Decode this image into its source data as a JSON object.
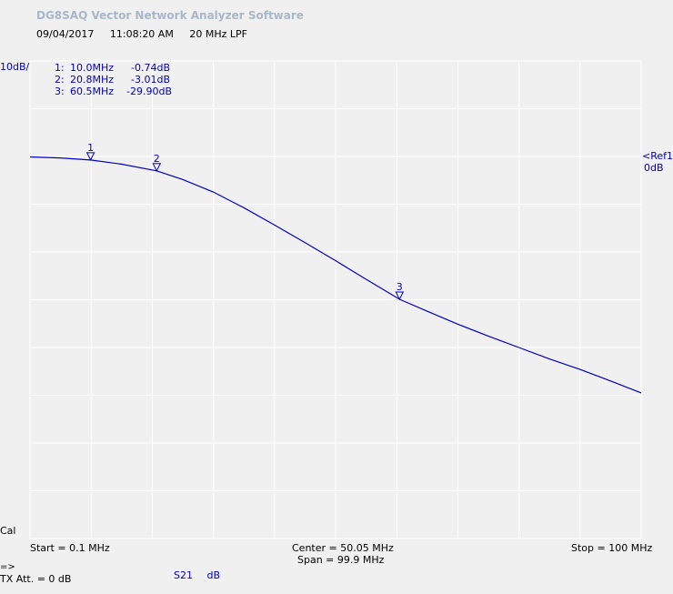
{
  "app_title": "DG8SAQ Vector Network Analyzer Software",
  "meta": {
    "date": "09/04/2017",
    "time": "11:08:20 AM",
    "label": "20 MHz LPF"
  },
  "scale_label": "10dB/",
  "markers": [
    {
      "idx": "1:",
      "freq": "10.0MHz",
      "val": "-0.74dB"
    },
    {
      "idx": "2:",
      "freq": "20.8MHz",
      "val": "-3.01dB"
    },
    {
      "idx": "3:",
      "freq": "60.5MHz",
      "val": "-29.90dB"
    }
  ],
  "ref_label": {
    "line1": "<Ref1",
    "line2": "0dB"
  },
  "cal_label": "Cal",
  "start_label": "Start = 0.1 MHz",
  "center_label": "Center = 50.05 MHz",
  "span_label": "Span = 99.9 MHz",
  "stop_label": "Stop = 100 MHz",
  "status": {
    "arrow": "=>",
    "tx_att": "TX Att.  = 0 dB"
  },
  "trace": {
    "name": "S21",
    "unit": "dB"
  },
  "colors": {
    "trace": "#0000c0",
    "grid": "#ffffff",
    "background": "#f0f0f0"
  },
  "chart_data": {
    "type": "line",
    "title": "",
    "xlabel": "",
    "ylabel": "",
    "x_unit": "MHz",
    "y_unit": "dB",
    "xlim": [
      0.1,
      100
    ],
    "ylim": [
      -80,
      20
    ],
    "x_divisions": 10,
    "y_divisions": 10,
    "reference_db": 0,
    "grid": true,
    "series": [
      {
        "name": "S21",
        "x": [
          0.1,
          5,
          10,
          15,
          20.8,
          25,
          30,
          35,
          40,
          45,
          50,
          55,
          60.5,
          65,
          70,
          75,
          80,
          85,
          90,
          95,
          100
        ],
        "y": [
          -0.1,
          -0.3,
          -0.74,
          -1.6,
          -3.01,
          -4.8,
          -7.4,
          -10.7,
          -14.3,
          -18.0,
          -21.8,
          -25.7,
          -29.9,
          -32.4,
          -35.1,
          -37.6,
          -40.0,
          -42.4,
          -44.6,
          -47.0,
          -49.5
        ]
      }
    ],
    "markers": [
      {
        "label": "1",
        "x": 10.0,
        "y": -0.74
      },
      {
        "label": "2",
        "x": 20.8,
        "y": -3.01
      },
      {
        "label": "3",
        "x": 60.5,
        "y": -29.9
      }
    ]
  }
}
